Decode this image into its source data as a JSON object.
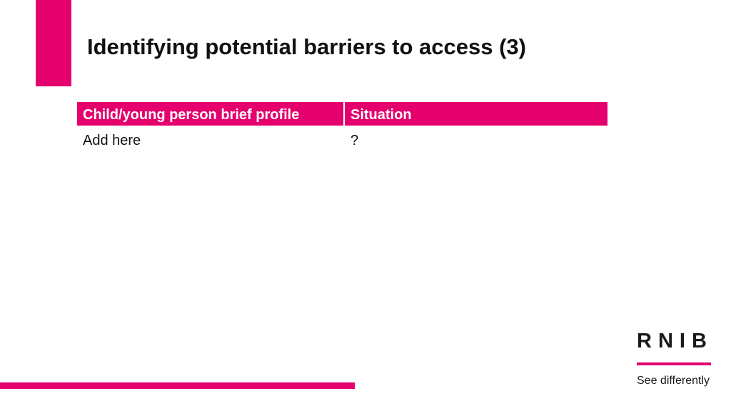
{
  "header": {
    "title": "Identifying potential barriers to access (3)"
  },
  "table": {
    "columns": [
      "Child/young person brief profile",
      "Situation"
    ],
    "rows": [
      [
        "Add here",
        "?"
      ]
    ]
  },
  "logo": {
    "name": "RNIB",
    "tagline": "See differently"
  }
}
